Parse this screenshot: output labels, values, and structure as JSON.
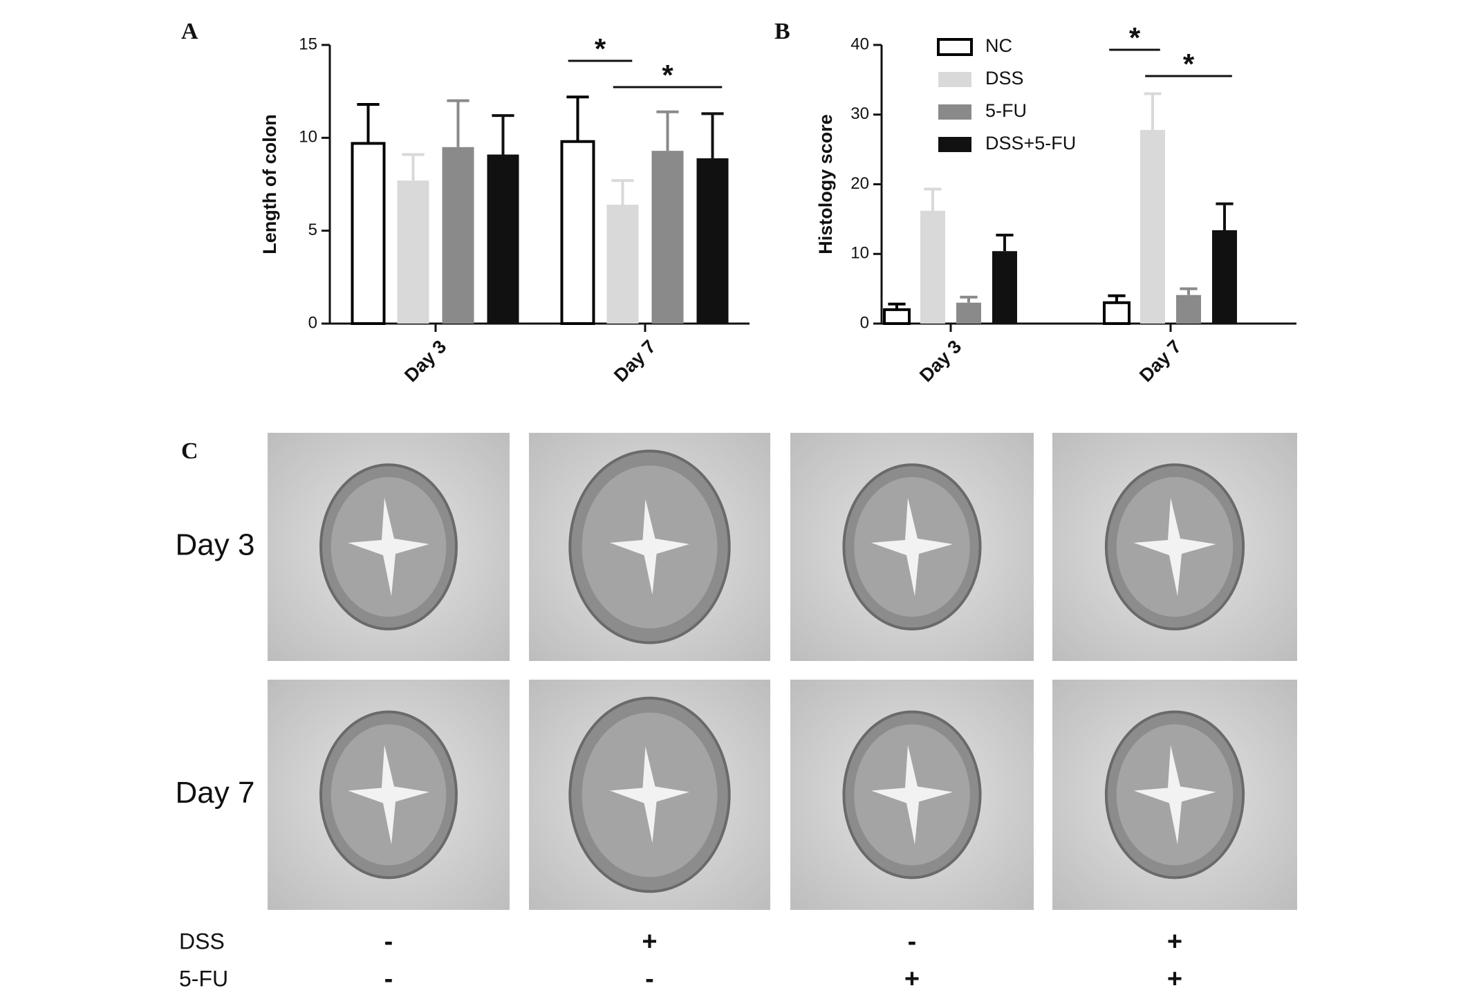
{
  "panel_labels": [
    "A",
    "B",
    "C"
  ],
  "chart_data": [
    {
      "type": "bar",
      "ylabel": "Length of colon",
      "categories": [
        "Day 3",
        "Day 7"
      ],
      "ylim": [
        0,
        15
      ],
      "yticks": [
        0,
        5,
        10,
        15
      ],
      "edgecolor": "#000000",
      "series": [
        {
          "color": "#ffffff",
          "values": [
            9.7,
            9.8
          ],
          "errors": [
            2.1,
            2.4
          ]
        },
        {
          "color": "#d9d9d9",
          "values": [
            7.7,
            6.4
          ],
          "errors": [
            1.4,
            1.3
          ]
        },
        {
          "color": "#8a8a8a",
          "values": [
            9.5,
            9.3
          ],
          "errors": [
            2.5,
            2.1
          ]
        },
        {
          "color": "#111111",
          "values": [
            9.1,
            8.9
          ],
          "errors": [
            2.1,
            2.4
          ]
        }
      ],
      "annotations": [
        {
          "text": "*",
          "category": 1,
          "series": [
            0,
            1
          ]
        },
        {
          "text": "*",
          "category": 1,
          "series": [
            1,
            3
          ]
        }
      ]
    },
    {
      "type": "bar",
      "ylabel": "Histology score",
      "categories": [
        "Day 3",
        "Day 7"
      ],
      "ylim": [
        0,
        40
      ],
      "yticks": [
        0,
        10,
        20,
        30,
        40
      ],
      "edgecolor": "#000000",
      "legend": "upper-left",
      "series": [
        {
          "name": "NC",
          "color": "#ffffff",
          "values": [
            2.0,
            3.0
          ],
          "errors": [
            0.8,
            1.0
          ]
        },
        {
          "name": "DSS",
          "color": "#d9d9d9",
          "values": [
            16.2,
            27.8
          ],
          "errors": [
            3.1,
            5.2
          ]
        },
        {
          "name": "5-FU",
          "color": "#8a8a8a",
          "values": [
            3.0,
            4.1
          ],
          "errors": [
            0.8,
            0.9
          ]
        },
        {
          "name": "DSS+5-FU",
          "color": "#111111",
          "values": [
            10.4,
            13.4
          ],
          "errors": [
            2.3,
            3.8
          ]
        }
      ],
      "annotations": [
        {
          "text": "*",
          "category": 1,
          "series": [
            0,
            1
          ]
        },
        {
          "text": "*",
          "category": 1,
          "series": [
            1,
            3
          ]
        }
      ]
    }
  ],
  "micrographs": {
    "rows": [
      "Day 3",
      "Day 7"
    ],
    "factors": [
      {
        "name": "DSS",
        "levels": [
          "-",
          "+",
          "-",
          "+"
        ]
      },
      {
        "name": "5-FU",
        "levels": [
          "-",
          "-",
          "+",
          "+"
        ]
      }
    ]
  }
}
